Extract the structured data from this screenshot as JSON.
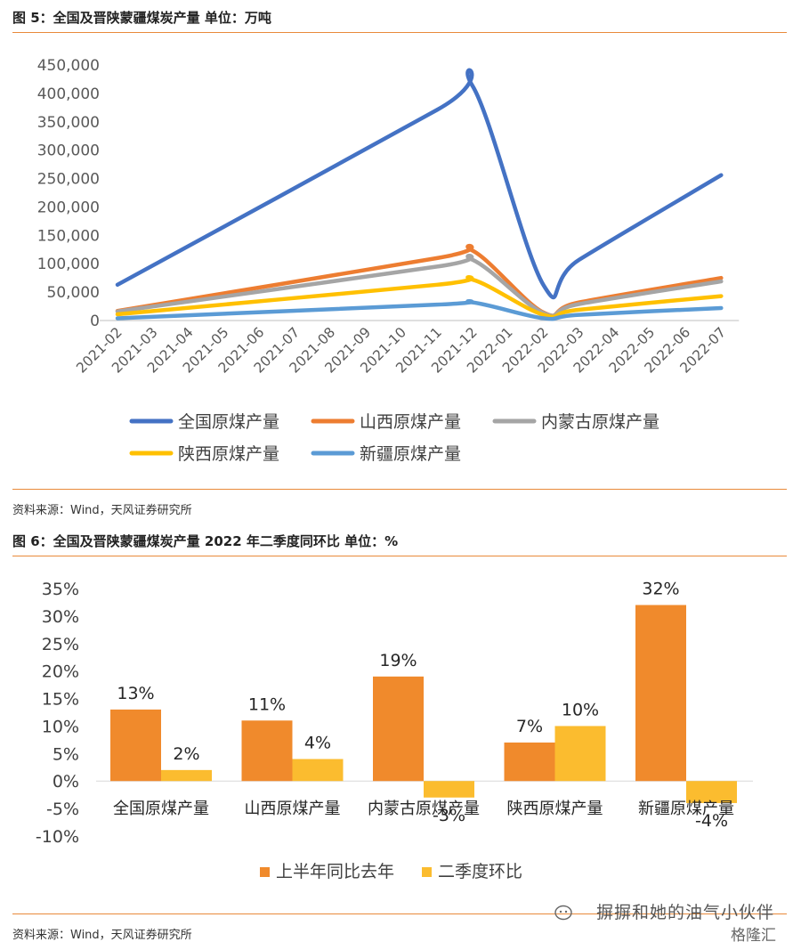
{
  "figure5": {
    "title": "图 5：全国及晋陕蒙疆煤炭产量 单位：万吨",
    "source": "资料来源：Wind，天风证券研究所"
  },
  "figure6": {
    "title": "图 6：全国及晋陕蒙疆煤炭产量 2022 年二季度同环比 单位：%",
    "source": "资料来源：Wind，天风证券研究所"
  },
  "watermark": {
    "text": "摒摒和她的油气小伙伴",
    "logo": "格隆汇"
  },
  "chart_data": [
    {
      "type": "line",
      "x": [
        "2021-02",
        "2021-03",
        "2021-04",
        "2021-05",
        "2021-06",
        "2021-07",
        "2021-08",
        "2021-09",
        "2021-10",
        "2021-11",
        "2021-12",
        "2022-01",
        "2022-02",
        "2022-03",
        "2022-04",
        "2022-05",
        "2022-06",
        "2022-07"
      ],
      "ylim": [
        0,
        450000
      ],
      "yticks": [
        "0",
        "50,000",
        "100,000",
        "150,000",
        "200,000",
        "250,000",
        "300,000",
        "350,000",
        "400,000",
        "450,000"
      ],
      "grid": false,
      "legend": "bottom",
      "series": [
        {
          "name": "全国原煤产量",
          "color": "#4472C4",
          "values": [
            63000,
            null,
            null,
            null,
            null,
            null,
            null,
            null,
            null,
            371000,
            413000,
            null,
            62000,
            107000,
            null,
            null,
            null,
            256000
          ]
        },
        {
          "name": "山西原煤产量",
          "color": "#ED7D31",
          "values": [
            17000,
            null,
            null,
            null,
            null,
            null,
            null,
            null,
            null,
            110000,
            123000,
            null,
            14000,
            32000,
            null,
            null,
            null,
            75000
          ]
        },
        {
          "name": "内蒙古原煤产量",
          "color": "#A5A5A5",
          "values": [
            16000,
            null,
            null,
            null,
            null,
            null,
            null,
            null,
            null,
            95000,
            107000,
            null,
            13000,
            29000,
            null,
            null,
            null,
            69000
          ]
        },
        {
          "name": "陕西原煤产量",
          "color": "#FFC000",
          "values": [
            11000,
            null,
            null,
            null,
            null,
            null,
            null,
            null,
            null,
            63000,
            72000,
            null,
            10000,
            19000,
            null,
            null,
            null,
            43000
          ]
        },
        {
          "name": "新疆原煤产量",
          "color": "#5B9BD5",
          "values": [
            4000,
            null,
            null,
            null,
            null,
            null,
            null,
            null,
            null,
            28000,
            32000,
            null,
            4000,
            10000,
            null,
            null,
            null,
            22000
          ]
        }
      ]
    },
    {
      "type": "bar",
      "categories": [
        "全国原煤产量",
        "山西原煤产量",
        "内蒙古原煤产量",
        "陕西原煤产量",
        "新疆原煤产量"
      ],
      "ylim": [
        -10,
        35
      ],
      "yticks": [
        "-10%",
        "-5%",
        "0%",
        "5%",
        "10%",
        "15%",
        "20%",
        "25%",
        "30%",
        "35%"
      ],
      "grid": false,
      "legend": "bottom",
      "series": [
        {
          "name": "上半年同比去年",
          "color": "#F08A2C",
          "values": [
            13,
            11,
            19,
            7,
            32
          ],
          "labels": [
            "13%",
            "11%",
            "19%",
            "7%",
            "32%"
          ]
        },
        {
          "name": "二季度环比",
          "color": "#FBBC2F",
          "values": [
            2,
            4,
            -3,
            10,
            -4
          ],
          "labels": [
            "2%",
            "4%",
            "-3%",
            "10%",
            "-4%"
          ]
        }
      ]
    }
  ]
}
